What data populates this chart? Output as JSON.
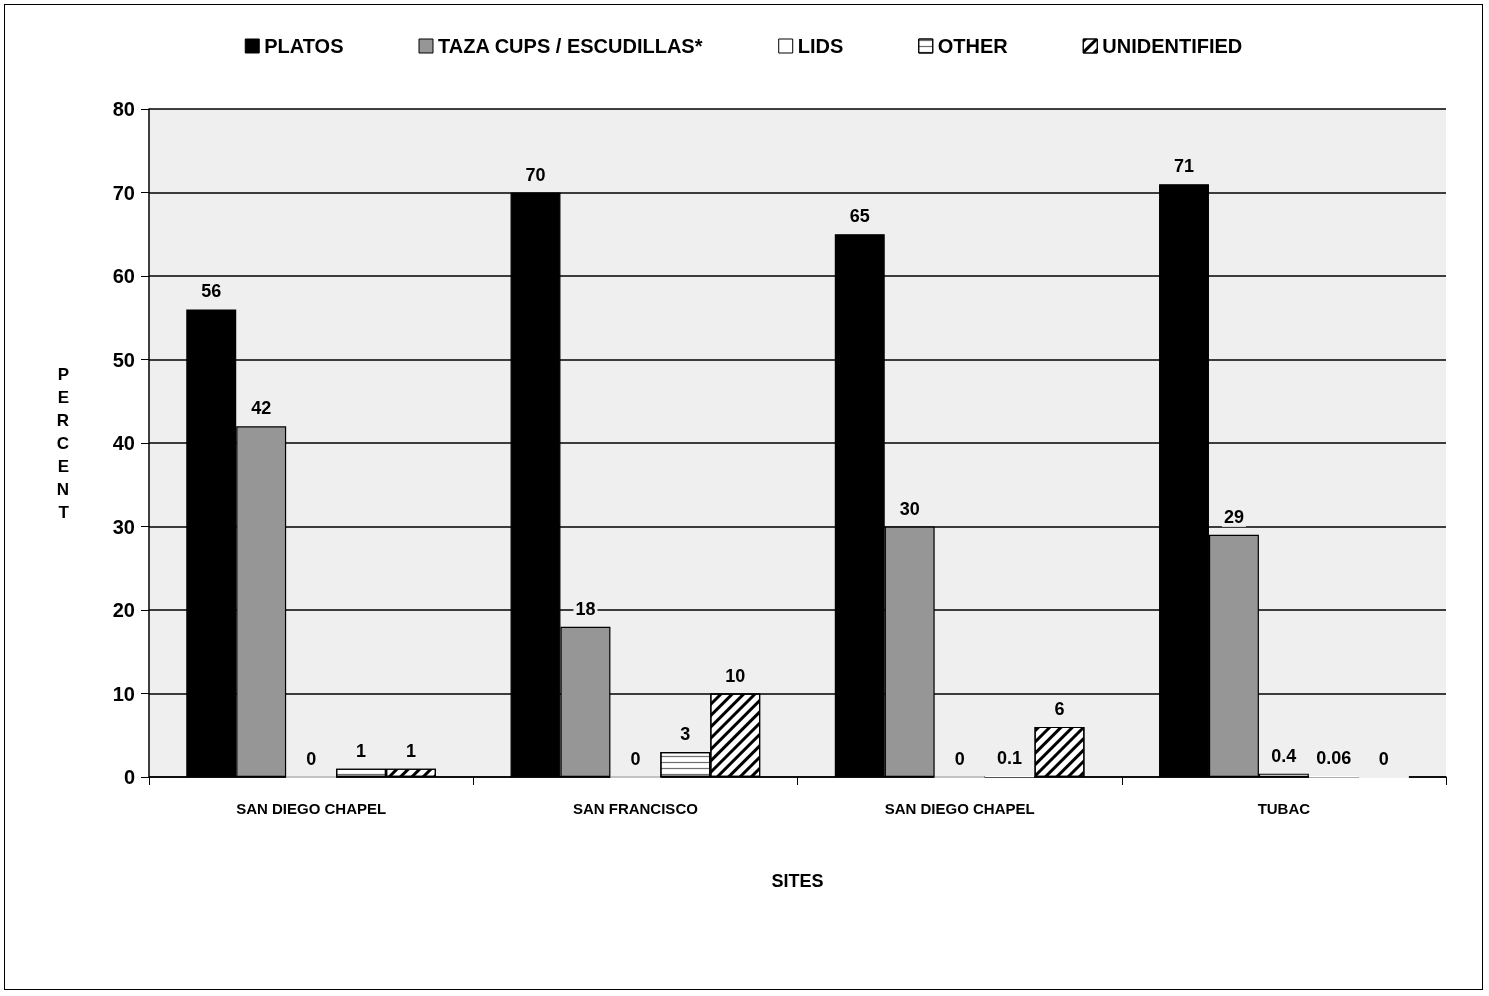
{
  "chart_data": {
    "type": "bar",
    "xlabel": "SITES",
    "ylabel": "PERCENT",
    "categories": [
      "SAN DIEGO CHAPEL",
      "SAN FRANCISCO",
      "SAN DIEGO CHAPEL",
      "TUBAC"
    ],
    "series": [
      {
        "name": "PLATOS",
        "color": "#000000",
        "values": [
          56,
          70,
          65,
          71
        ]
      },
      {
        "name": "TAZA CUPS / ESCUDILLAS*",
        "color": "#969696",
        "values": [
          42,
          18,
          30,
          29
        ]
      },
      {
        "name": "LIDS",
        "color": "#ffffff",
        "values": [
          0,
          0,
          0,
          0.4
        ]
      },
      {
        "name": "OTHER",
        "color": "#ffffff",
        "values": [
          1,
          3,
          0.1,
          0.06
        ]
      },
      {
        "name": "UNIDENTIFIED",
        "color": "#ffffff",
        "values": [
          1,
          10,
          6,
          0
        ]
      }
    ],
    "ylim": [
      0,
      80
    ],
    "yticks": [
      0,
      10,
      20,
      30,
      40,
      50,
      60,
      70,
      80
    ],
    "grid": "y",
    "legend": "top",
    "data_labels": true
  }
}
